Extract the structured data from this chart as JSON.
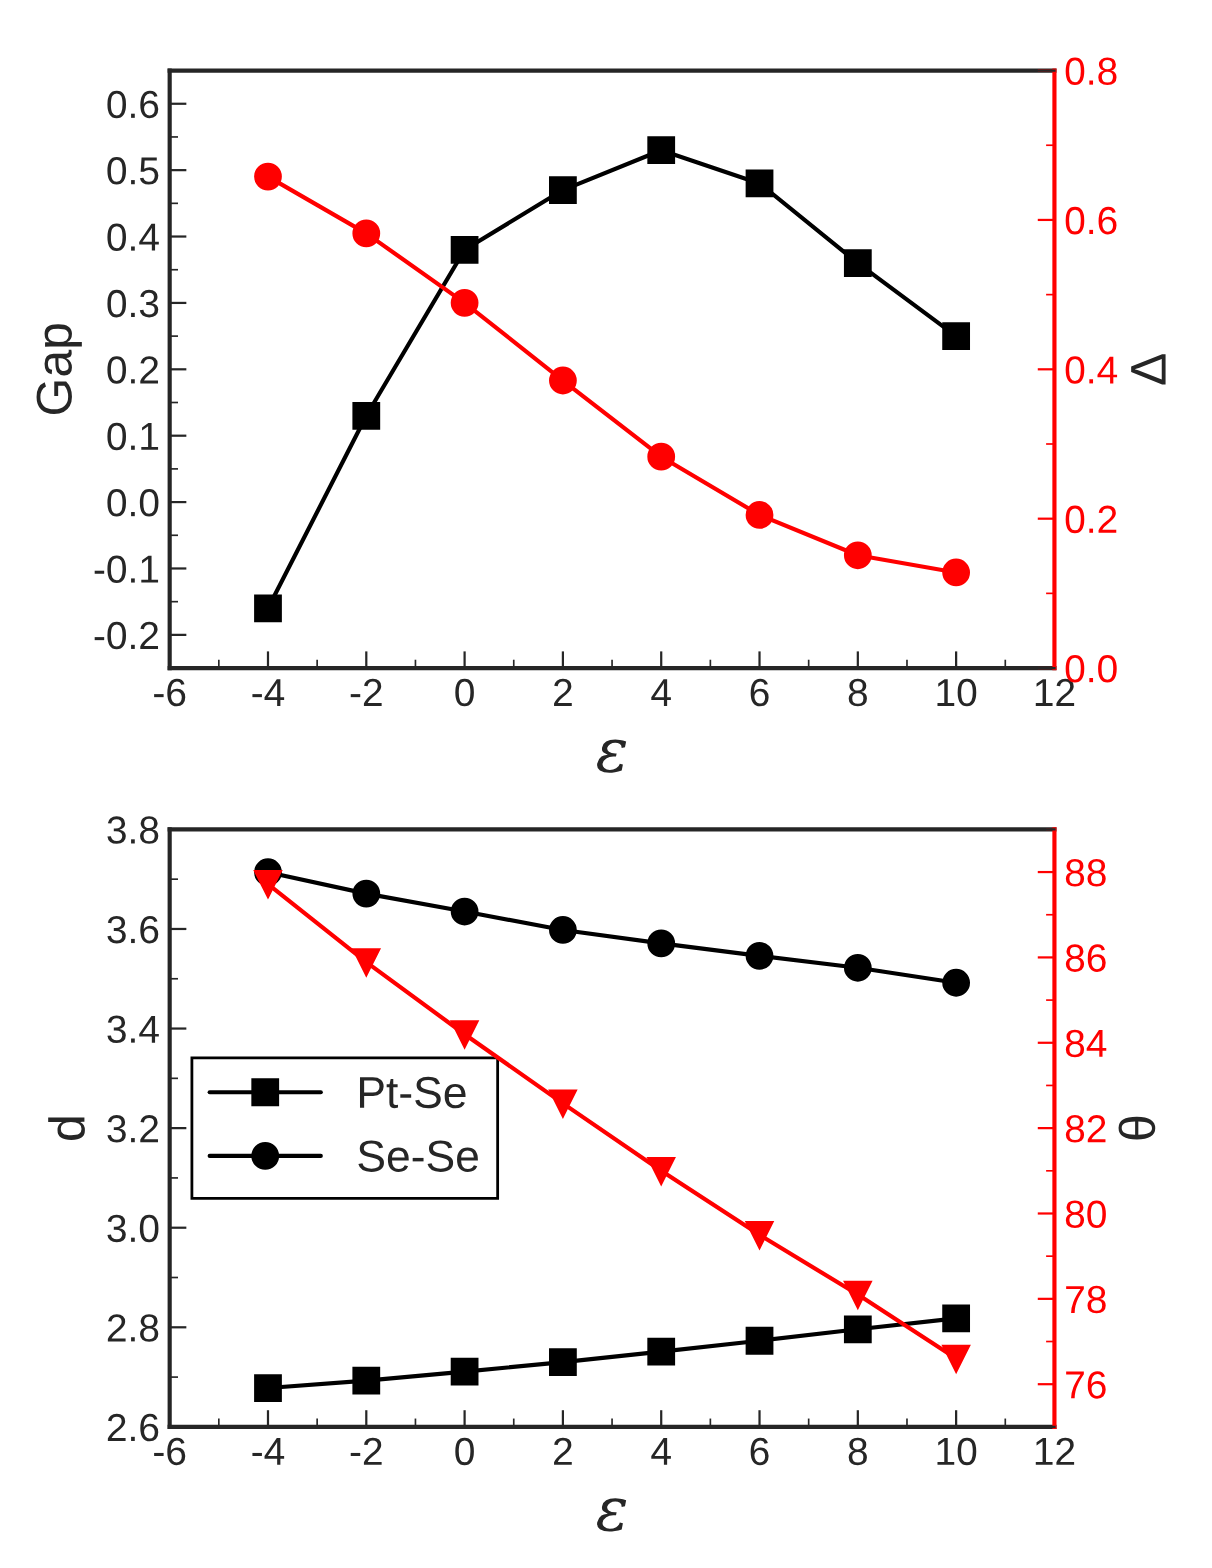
{
  "chart_data": [
    {
      "type": "line",
      "xlabel": "ε",
      "ylabel": "Gap",
      "y2label": "Δ",
      "x": [
        -4,
        -2,
        0,
        2,
        4,
        6,
        8,
        10
      ],
      "xlim": [
        -6,
        12
      ],
      "xticks": [
        -6,
        -4,
        -2,
        0,
        2,
        4,
        6,
        8,
        10,
        12
      ],
      "ylim": [
        -0.25,
        0.65
      ],
      "yticks": [
        {
          "value": -0.2,
          "label": "-0.2"
        },
        {
          "value": -0.1,
          "label": "-0.1"
        },
        {
          "value": 0.0,
          "label": "0.0"
        },
        0.1,
        0.2,
        0.3,
        0.4,
        0.5,
        0.6
      ],
      "y2lim": [
        0,
        0.8
      ],
      "y2ticks": [
        {
          "value": 0,
          "label": "0.0"
        },
        0.2,
        0.4,
        0.6,
        0.8
      ],
      "grid": false,
      "legend": false,
      "line_style": "solid",
      "series": [
        {
          "color": "#000000",
          "marker": "square",
          "values": [
            -0.16,
            0.13,
            0.38,
            0.47,
            0.53,
            0.48,
            0.36,
            0.25
          ]
        },
        {
          "color": "#ff0000",
          "marker": "circle",
          "axis": "y2",
          "values": [
            0.658,
            0.582,
            0.489,
            0.385,
            0.283,
            0.205,
            0.151,
            0.128
          ]
        }
      ]
    },
    {
      "type": "line",
      "xlabel": "ε",
      "ylabel": "d",
      "y2label": "θ",
      "x": [
        -4,
        -2,
        0,
        2,
        4,
        6,
        8,
        10
      ],
      "xlim": [
        -6,
        12
      ],
      "xticks": [
        -6,
        -4,
        -2,
        0,
        2,
        4,
        6,
        8,
        10,
        12
      ],
      "ylim": [
        2.6,
        3.8
      ],
      "yticks": [
        2.6,
        2.8,
        {
          "value": 3.0,
          "label": "3.0"
        },
        3.2,
        3.4,
        3.6,
        3.8
      ],
      "y2lim": [
        75,
        89
      ],
      "y2ticks": [
        76,
        78,
        80,
        82,
        84,
        86,
        88
      ],
      "grid": false,
      "legend": "left",
      "line_style": "solid",
      "series": [
        {
          "name": "Pt-Se",
          "color": "#000000",
          "marker": "square",
          "values": [
            2.678,
            2.693,
            2.711,
            2.73,
            2.751,
            2.773,
            2.796,
            2.818
          ]
        },
        {
          "name": "Se-Se",
          "color": "#000000",
          "marker": "circle",
          "values": [
            3.714,
            3.671,
            3.635,
            3.598,
            3.571,
            3.546,
            3.522,
            3.492
          ]
        },
        {
          "color": "#ff0000",
          "marker": "triangle",
          "axis": "y2",
          "values": [
            87.72,
            85.89,
            84.2,
            82.58,
            81.0,
            79.5,
            78.1,
            76.6
          ]
        }
      ]
    }
  ]
}
